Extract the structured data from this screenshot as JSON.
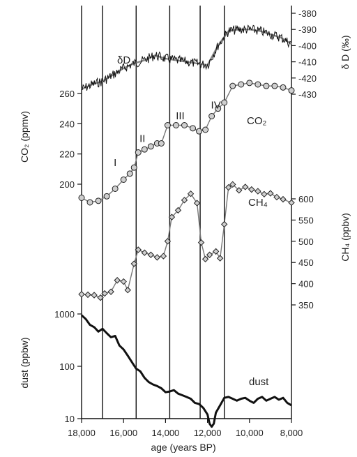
{
  "chart_data": {
    "type": "line",
    "x": {
      "label": "age (years BP)",
      "range": [
        18000,
        8000
      ],
      "tick_labels": [
        "18,000",
        "16,000",
        "14,000",
        "12,000",
        "10,000",
        "8,000"
      ],
      "tick_values": [
        18000,
        16000,
        14000,
        12000,
        10000,
        8000
      ]
    },
    "vertical_lines": [
      17000,
      15400,
      13800,
      12350,
      11200
    ],
    "period_labels": [
      {
        "text": "I",
        "x": 16400,
        "y": 212
      },
      {
        "text": "II",
        "x": 15100,
        "y": 228
      },
      {
        "text": "III",
        "x": 13300,
        "y": 243
      },
      {
        "text": "IV",
        "x": 11600,
        "y": 250
      }
    ],
    "axes": {
      "dD": {
        "label": "δ D (‰)",
        "side": "right",
        "range": [
          -430,
          -380
        ],
        "tick_labels": [
          "-380",
          "-390",
          "-400",
          "-410",
          "-420",
          "-430"
        ],
        "tick_values": [
          -380,
          -390,
          -400,
          -410,
          -420,
          -430
        ]
      },
      "co2": {
        "label": "CO₂ (ppmv)",
        "side": "left",
        "range": [
          200,
          260
        ],
        "tick_labels": [
          "260",
          "240",
          "220",
          "200"
        ],
        "tick_values": [
          260,
          240,
          220,
          200
        ]
      },
      "ch4": {
        "label": "CH₄ (ppbv)",
        "side": "right",
        "range": [
          350,
          600
        ],
        "tick_labels": [
          "600",
          "550",
          "500",
          "450",
          "400",
          "350"
        ],
        "tick_values": [
          600,
          550,
          500,
          450,
          400,
          350
        ]
      },
      "dust": {
        "label": "dust (ppbw)",
        "side": "left",
        "scale": "log",
        "range": [
          10,
          1000
        ],
        "tick_labels": [
          "1000",
          "100",
          "10"
        ],
        "tick_values": [
          1000,
          100,
          10
        ]
      }
    },
    "series": [
      {
        "name": "δD",
        "axis": "dD",
        "style": "noisy-line",
        "x": [
          18000,
          17500,
          17000,
          16500,
          16000,
          15500,
          15000,
          14500,
          14000,
          13500,
          13000,
          12500,
          12000,
          11500,
          11000,
          10500,
          10000,
          9500,
          9000,
          8500,
          8000
        ],
        "values": [
          -427,
          -424,
          -422,
          -418,
          -414,
          -411,
          -409,
          -406,
          -408,
          -409,
          -410,
          -411,
          -412,
          -400,
          -391,
          -390,
          -390,
          -391,
          -393,
          -395,
          -399
        ]
      },
      {
        "name": "CO₂",
        "axis": "co2",
        "style": "line-markers",
        "x": [
          18000,
          17600,
          17200,
          16800,
          16400,
          16000,
          15700,
          15500,
          15300,
          15000,
          14700,
          14400,
          14200,
          13900,
          13500,
          13100,
          12700,
          12400,
          12100,
          11800,
          11500,
          11200,
          10800,
          10400,
          10000,
          9600,
          9200,
          8800,
          8400,
          8000
        ],
        "values": [
          191,
          188,
          189,
          192,
          197,
          203,
          207,
          211,
          221,
          223,
          225,
          227,
          227,
          239,
          239,
          239,
          237,
          235,
          236,
          245,
          250,
          254,
          265,
          266,
          267,
          266,
          265,
          265,
          264,
          262
        ]
      },
      {
        "name": "CH₄",
        "axis": "ch4",
        "style": "line-markers",
        "x": [
          18000,
          17700,
          17400,
          17100,
          16900,
          16600,
          16300,
          16000,
          15800,
          15500,
          15300,
          15000,
          14700,
          14400,
          14100,
          13900,
          13700,
          13400,
          13100,
          12800,
          12500,
          12300,
          12100,
          11900,
          11600,
          11400,
          11200,
          11000,
          10800,
          10500,
          10200,
          9900,
          9600,
          9300,
          9000,
          8700,
          8400,
          8000
        ],
        "values": [
          375,
          374,
          373,
          367,
          377,
          381,
          408,
          405,
          385,
          447,
          480,
          473,
          468,
          462,
          465,
          500,
          557,
          573,
          597,
          612,
          590,
          497,
          458,
          468,
          476,
          460,
          540,
          627,
          634,
          620,
          628,
          622,
          618,
          611,
          613,
          604,
          599,
          591
        ]
      },
      {
        "name": "dust",
        "axis": "dust",
        "style": "thick-line",
        "x": [
          18000,
          17800,
          17600,
          17400,
          17200,
          17000,
          16800,
          16600,
          16400,
          16200,
          16000,
          15800,
          15600,
          15400,
          15200,
          15000,
          14800,
          14600,
          14400,
          14200,
          14000,
          13800,
          13600,
          13400,
          13200,
          13000,
          12800,
          12600,
          12400,
          12200,
          12000,
          11900,
          11800,
          11700,
          11600,
          11400,
          11200,
          11000,
          10800,
          10600,
          10400,
          10200,
          10000,
          9800,
          9600,
          9400,
          9200,
          9000,
          8800,
          8600,
          8400,
          8200,
          8000
        ],
        "values": [
          950,
          800,
          620,
          560,
          460,
          520,
          430,
          360,
          380,
          250,
          210,
          160,
          120,
          90,
          80,
          60,
          50,
          45,
          42,
          38,
          32,
          33,
          35,
          30,
          28,
          26,
          24,
          20,
          19,
          16,
          12,
          8,
          7,
          8,
          13,
          18,
          25,
          26,
          24,
          22,
          24,
          25,
          22,
          20,
          24,
          26,
          22,
          24,
          26,
          23,
          25,
          20,
          18
        ]
      }
    ]
  }
}
